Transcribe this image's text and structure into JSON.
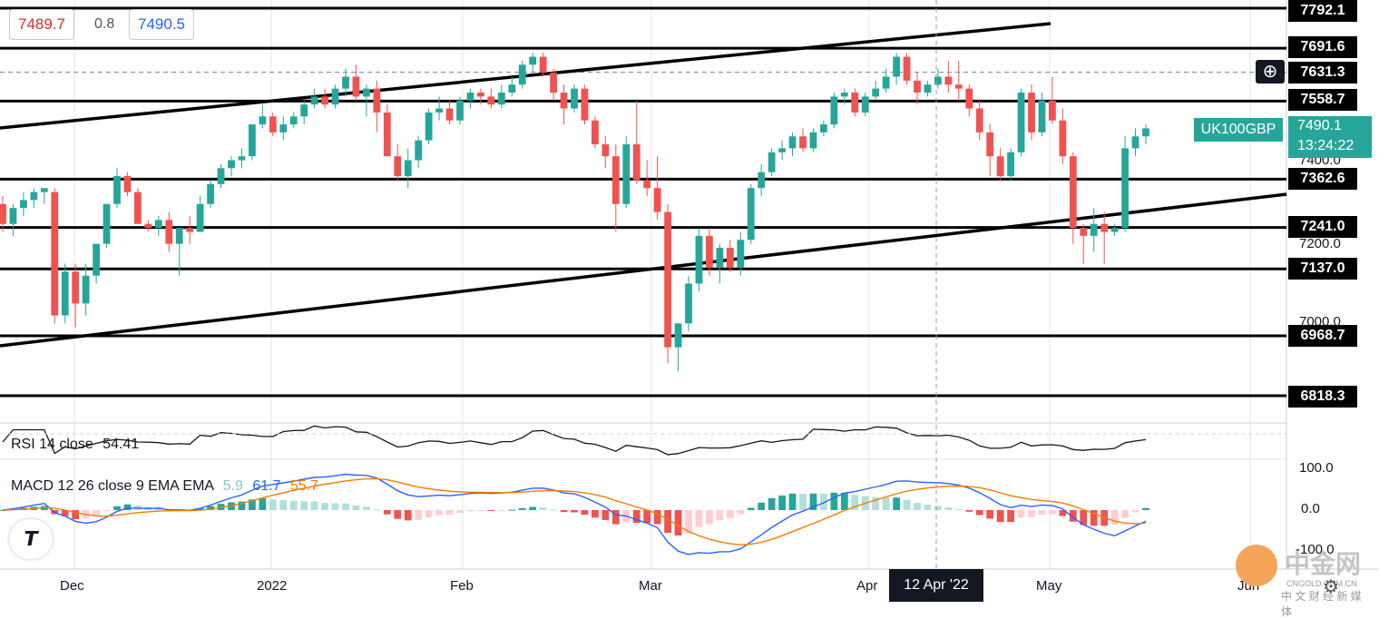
{
  "quote": {
    "bid": "7489.7",
    "spread": "0.8",
    "ask": "7490.5"
  },
  "symbol_tag": {
    "name": "UK100GBP",
    "price": "7490.1",
    "countdown": "13:24:22"
  },
  "crosshair_date": "12 Apr '22",
  "watermark": "中金网",
  "watermark_sub": "CNGOLD.COM.CN",
  "watermark_sub2": "中 文 财 经 新 媒 体",
  "rsi": {
    "label": "RSI 14 close",
    "value": "54.41"
  },
  "macd": {
    "label": "MACD 12 26 close 9 EMA EMA",
    "hist": "5.9",
    "macd": "61.7",
    "signal": "55.7"
  },
  "price_scale_ticks": [
    "7400.0",
    "7200.0",
    "7000.0"
  ],
  "macd_scale_ticks": [
    "100.0",
    "0.0",
    "-100.0"
  ],
  "colors": {
    "up": "#26a69a",
    "down": "#ef5350",
    "line": "#000000",
    "macd": "#2962ff",
    "signal": "#f57c00",
    "hist_up_strong": "#26a69a",
    "hist_up_weak": "#b2dfdb",
    "hist_down_strong": "#ef5350",
    "hist_down_weak": "#ffcdd2"
  },
  "chart_data": {
    "type": "candlestick",
    "xlabels": [
      "Dec",
      "2022",
      "Feb",
      "Mar",
      "Apr",
      "May",
      "Jun"
    ],
    "horizontal_levels": [
      7792.1,
      7691.6,
      7631.3,
      7558.7,
      7362.6,
      7241.0,
      7137.0,
      6968.7,
      6818.3
    ],
    "level_labels": [
      "7792.1",
      "7691.6",
      "7631.3",
      "7558.7",
      "7362.6",
      "7241.0",
      "7137.0",
      "6968.7",
      "6818.3"
    ],
    "ohlc": [
      [
        7300,
        7320,
        7230,
        7250
      ],
      [
        7250,
        7300,
        7220,
        7290
      ],
      [
        7290,
        7330,
        7270,
        7310
      ],
      [
        7310,
        7340,
        7290,
        7330
      ],
      [
        7330,
        7340,
        7300,
        7340
      ],
      [
        7330,
        7340,
        7000,
        7020
      ],
      [
        7020,
        7150,
        7000,
        7130
      ],
      [
        7130,
        7150,
        6990,
        7050
      ],
      [
        7050,
        7150,
        7020,
        7120
      ],
      [
        7120,
        7200,
        7100,
        7200
      ],
      [
        7200,
        7300,
        7190,
        7300
      ],
      [
        7300,
        7390,
        7290,
        7370
      ],
      [
        7370,
        7380,
        7320,
        7330
      ],
      [
        7330,
        7340,
        7250,
        7250
      ],
      [
        7250,
        7260,
        7230,
        7240
      ],
      [
        7240,
        7270,
        7220,
        7260
      ],
      [
        7260,
        7280,
        7180,
        7200
      ],
      [
        7200,
        7240,
        7120,
        7240
      ],
      [
        7240,
        7270,
        7200,
        7230
      ],
      [
        7230,
        7320,
        7230,
        7300
      ],
      [
        7300,
        7360,
        7290,
        7350
      ],
      [
        7350,
        7400,
        7340,
        7390
      ],
      [
        7390,
        7420,
        7370,
        7410
      ],
      [
        7410,
        7440,
        7390,
        7420
      ],
      [
        7420,
        7500,
        7410,
        7500
      ],
      [
        7500,
        7550,
        7490,
        7520
      ],
      [
        7520,
        7530,
        7470,
        7480
      ],
      [
        7480,
        7520,
        7460,
        7500
      ],
      [
        7500,
        7530,
        7490,
        7520
      ],
      [
        7520,
        7560,
        7500,
        7550
      ],
      [
        7550,
        7590,
        7540,
        7570
      ],
      [
        7570,
        7590,
        7540,
        7550
      ],
      [
        7550,
        7600,
        7540,
        7590
      ],
      [
        7590,
        7640,
        7570,
        7620
      ],
      [
        7620,
        7650,
        7560,
        7570
      ],
      [
        7570,
        7600,
        7520,
        7590
      ],
      [
        7590,
        7610,
        7480,
        7530
      ],
      [
        7530,
        7550,
        7420,
        7420
      ],
      [
        7420,
        7450,
        7360,
        7370
      ],
      [
        7370,
        7440,
        7340,
        7410
      ],
      [
        7410,
        7470,
        7390,
        7460
      ],
      [
        7460,
        7540,
        7450,
        7530
      ],
      [
        7530,
        7570,
        7510,
        7540
      ],
      [
        7540,
        7560,
        7500,
        7510
      ],
      [
        7510,
        7570,
        7500,
        7560
      ],
      [
        7560,
        7590,
        7540,
        7580
      ],
      [
        7580,
        7590,
        7550,
        7570
      ],
      [
        7570,
        7590,
        7540,
        7550
      ],
      [
        7550,
        7600,
        7540,
        7580
      ],
      [
        7580,
        7620,
        7570,
        7600
      ],
      [
        7600,
        7660,
        7590,
        7650
      ],
      [
        7650,
        7680,
        7630,
        7670
      ],
      [
        7670,
        7680,
        7620,
        7630
      ],
      [
        7630,
        7640,
        7560,
        7580
      ],
      [
        7580,
        7600,
        7500,
        7540
      ],
      [
        7540,
        7600,
        7530,
        7590
      ],
      [
        7590,
        7600,
        7500,
        7510
      ],
      [
        7510,
        7520,
        7440,
        7450
      ],
      [
        7450,
        7470,
        7390,
        7420
      ],
      [
        7420,
        7450,
        7230,
        7300
      ],
      [
        7300,
        7470,
        7290,
        7450
      ],
      [
        7450,
        7560,
        7350,
        7360
      ],
      [
        7360,
        7410,
        7320,
        7340
      ],
      [
        7340,
        7420,
        7260,
        7280
      ],
      [
        7280,
        7300,
        6900,
        6940
      ],
      [
        6940,
        7000,
        6880,
        7000
      ],
      [
        7000,
        7120,
        6980,
        7100
      ],
      [
        7100,
        7240,
        7080,
        7220
      ],
      [
        7220,
        7240,
        7120,
        7140
      ],
      [
        7140,
        7200,
        7100,
        7190
      ],
      [
        7190,
        7210,
        7130,
        7140
      ],
      [
        7140,
        7230,
        7120,
        7210
      ],
      [
        7210,
        7350,
        7200,
        7340
      ],
      [
        7340,
        7400,
        7320,
        7380
      ],
      [
        7380,
        7440,
        7370,
        7430
      ],
      [
        7430,
        7460,
        7410,
        7440
      ],
      [
        7440,
        7480,
        7420,
        7470
      ],
      [
        7470,
        7490,
        7430,
        7440
      ],
      [
        7440,
        7490,
        7430,
        7480
      ],
      [
        7480,
        7510,
        7470,
        7500
      ],
      [
        7500,
        7580,
        7490,
        7570
      ],
      [
        7570,
        7590,
        7550,
        7580
      ],
      [
        7580,
        7590,
        7520,
        7530
      ],
      [
        7530,
        7580,
        7520,
        7570
      ],
      [
        7570,
        7610,
        7560,
        7590
      ],
      [
        7590,
        7640,
        7580,
        7620
      ],
      [
        7620,
        7680,
        7600,
        7670
      ],
      [
        7670,
        7680,
        7600,
        7610
      ],
      [
        7610,
        7630,
        7550,
        7580
      ],
      [
        7580,
        7610,
        7570,
        7600
      ],
      [
        7600,
        7640,
        7590,
        7620
      ],
      [
        7620,
        7660,
        7580,
        7600
      ],
      [
        7600,
        7660,
        7560,
        7590
      ],
      [
        7590,
        7600,
        7520,
        7540
      ],
      [
        7540,
        7560,
        7460,
        7480
      ],
      [
        7480,
        7500,
        7370,
        7420
      ],
      [
        7420,
        7440,
        7360,
        7370
      ],
      [
        7370,
        7440,
        7360,
        7430
      ],
      [
        7430,
        7590,
        7420,
        7580
      ],
      [
        7580,
        7600,
        7460,
        7480
      ],
      [
        7480,
        7580,
        7470,
        7560
      ],
      [
        7560,
        7620,
        7500,
        7510
      ],
      [
        7510,
        7540,
        7400,
        7420
      ],
      [
        7420,
        7430,
        7200,
        7240
      ],
      [
        7240,
        7250,
        7150,
        7220
      ],
      [
        7220,
        7290,
        7180,
        7250
      ],
      [
        7250,
        7280,
        7150,
        7230
      ],
      [
        7230,
        7250,
        7220,
        7240
      ],
      [
        7240,
        7470,
        7230,
        7440
      ],
      [
        7440,
        7490,
        7420,
        7470
      ],
      [
        7470,
        7500,
        7450,
        7490
      ]
    ],
    "rsi": {
      "label": "RSI 14 close",
      "value": 54.41
    },
    "macd": {
      "label": "MACD 12 26 close 9 EMA EMA",
      "histogram": 5.9,
      "macd": 61.7,
      "signal": 55.7
    }
  }
}
